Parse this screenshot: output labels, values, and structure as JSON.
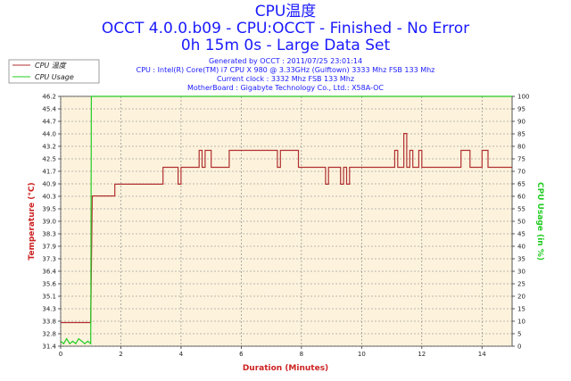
{
  "title": {
    "line1": "CPU温度",
    "line2": "OCCT 4.0.0.b09 - CPU:OCCT - Finished - No Error",
    "line3": "0h 15m 0s - Large Data Set"
  },
  "info": {
    "generated": "Generated by OCCT : 2011/07/25 23:01:14",
    "cpu": "CPU : Intel(R) Core(TM) i7 CPU X 980 @ 3.33GHz (Gulftown) 3333 Mhz FSB 133 Mhz",
    "clock": "Current clock : 3332 Mhz FSB 133 Mhz",
    "motherboard": "MotherBoard : Gigabyte Technology Co., Ltd.: X58A-OC"
  },
  "colors": {
    "temperature": "#b03030",
    "cpu_usage": "#22cc22",
    "plot_background": "#fdf3dd",
    "grid": "#7a7a7a"
  },
  "chart_data": {
    "type": "line",
    "xlabel": "Duration (Minutes)",
    "ylabel": "Temperature (°C)",
    "y2label": "CPU Usage (in %)",
    "xlim": [
      0,
      15
    ],
    "ylim": [
      31.4,
      46.2
    ],
    "y2lim": [
      0,
      100
    ],
    "x_ticks": [
      0,
      2,
      4,
      6,
      8,
      10,
      12,
      14
    ],
    "y_ticks": [
      "31.4",
      "32.8",
      "33.8",
      "34.3",
      "35.1",
      "35.6",
      "36.4",
      "37.3",
      "37.9",
      "38.3",
      "39.0",
      "39.5",
      "40.3",
      "40.9",
      "41.7",
      "42.5",
      "43.2",
      "44.0",
      "44.7",
      "45.4",
      "46.2"
    ],
    "y2_ticks": [
      0,
      5,
      10,
      15,
      20,
      25,
      30,
      35,
      40,
      45,
      50,
      55,
      60,
      65,
      70,
      75,
      80,
      85,
      90,
      95,
      100
    ],
    "grid": true,
    "legend_position": "top-left",
    "series": [
      {
        "name": "CPU 温度",
        "axis": "left",
        "points": [
          [
            0,
            32.8
          ],
          [
            1.0,
            32.8
          ],
          [
            1.05,
            40.3
          ],
          [
            1.8,
            40.3
          ],
          [
            1.8,
            41.0
          ],
          [
            3.4,
            41.0
          ],
          [
            3.4,
            42.0
          ],
          [
            3.9,
            42.0
          ],
          [
            3.9,
            41.0
          ],
          [
            4.0,
            41.0
          ],
          [
            4.0,
            42.0
          ],
          [
            4.6,
            42.0
          ],
          [
            4.6,
            43.0
          ],
          [
            4.7,
            43.0
          ],
          [
            4.7,
            42.0
          ],
          [
            4.8,
            42.0
          ],
          [
            4.8,
            43.0
          ],
          [
            5.0,
            43.0
          ],
          [
            5.0,
            42.0
          ],
          [
            5.6,
            42.0
          ],
          [
            5.6,
            43.0
          ],
          [
            7.2,
            43.0
          ],
          [
            7.2,
            42.0
          ],
          [
            7.3,
            42.0
          ],
          [
            7.3,
            43.0
          ],
          [
            7.9,
            43.0
          ],
          [
            7.9,
            42.0
          ],
          [
            8.8,
            42.0
          ],
          [
            8.8,
            41.0
          ],
          [
            8.9,
            41.0
          ],
          [
            8.9,
            42.0
          ],
          [
            9.3,
            42.0
          ],
          [
            9.3,
            41.0
          ],
          [
            9.4,
            41.0
          ],
          [
            9.4,
            42.0
          ],
          [
            9.5,
            42.0
          ],
          [
            9.5,
            41.0
          ],
          [
            9.6,
            41.0
          ],
          [
            9.6,
            42.0
          ],
          [
            11.1,
            42.0
          ],
          [
            11.1,
            43.0
          ],
          [
            11.2,
            43.0
          ],
          [
            11.2,
            42.0
          ],
          [
            11.4,
            42.0
          ],
          [
            11.4,
            44.0
          ],
          [
            11.5,
            44.0
          ],
          [
            11.5,
            42.0
          ],
          [
            11.6,
            42.0
          ],
          [
            11.6,
            43.0
          ],
          [
            11.7,
            43.0
          ],
          [
            11.7,
            42.0
          ],
          [
            11.9,
            42.0
          ],
          [
            11.9,
            43.0
          ],
          [
            12.0,
            43.0
          ],
          [
            12.0,
            42.0
          ],
          [
            13.3,
            42.0
          ],
          [
            13.3,
            43.0
          ],
          [
            13.6,
            43.0
          ],
          [
            13.6,
            42.0
          ],
          [
            14.0,
            42.0
          ],
          [
            14.0,
            43.0
          ],
          [
            14.2,
            43.0
          ],
          [
            14.2,
            42.0
          ],
          [
            15.0,
            42.0
          ]
        ]
      },
      {
        "name": "CPU Usage",
        "axis": "right",
        "points": [
          [
            0,
            2
          ],
          [
            0.1,
            1
          ],
          [
            0.2,
            3
          ],
          [
            0.3,
            1
          ],
          [
            0.4,
            2
          ],
          [
            0.5,
            1
          ],
          [
            0.6,
            3
          ],
          [
            0.7,
            2
          ],
          [
            0.8,
            1
          ],
          [
            0.9,
            2
          ],
          [
            1.0,
            1
          ],
          [
            1.02,
            100
          ],
          [
            15.0,
            100
          ]
        ]
      }
    ]
  }
}
